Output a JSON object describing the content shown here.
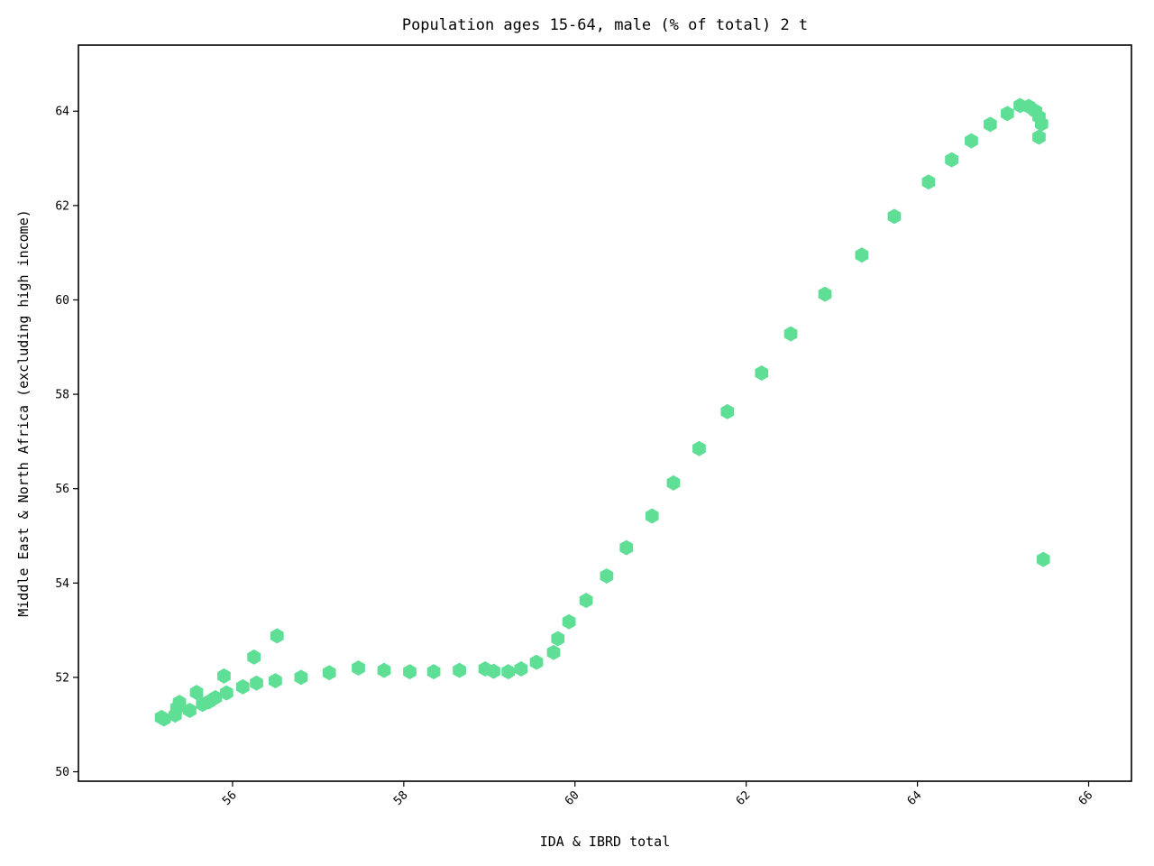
{
  "chart_data": {
    "type": "scatter",
    "title": "Population ages 15-64, male (% of total) 2 t",
    "xlabel": "IDA & IBRD total",
    "ylabel": "Middle East & North Africa (excluding high income)",
    "xlim": [
      54.2,
      66.5
    ],
    "ylim": [
      49.8,
      65.4
    ],
    "xticks": [
      56,
      58,
      60,
      62,
      64,
      66
    ],
    "yticks": [
      50,
      52,
      54,
      56,
      58,
      60,
      62,
      64
    ],
    "marker": "hexagon",
    "color": "#5fdf95",
    "grid": false,
    "points": [
      [
        55.17,
        51.15
      ],
      [
        55.2,
        51.12
      ],
      [
        55.33,
        51.2
      ],
      [
        55.35,
        51.35
      ],
      [
        55.38,
        51.47
      ],
      [
        55.5,
        51.3
      ],
      [
        55.58,
        51.68
      ],
      [
        55.65,
        51.43
      ],
      [
        55.72,
        51.48
      ],
      [
        55.8,
        51.57
      ],
      [
        55.9,
        52.03
      ],
      [
        55.93,
        51.67
      ],
      [
        56.12,
        51.8
      ],
      [
        56.25,
        52.43
      ],
      [
        56.28,
        51.88
      ],
      [
        56.5,
        51.93
      ],
      [
        56.52,
        52.88
      ],
      [
        56.8,
        52.0
      ],
      [
        57.13,
        52.1
      ],
      [
        57.47,
        52.2
      ],
      [
        57.77,
        52.15
      ],
      [
        58.07,
        52.12
      ],
      [
        58.35,
        52.12
      ],
      [
        58.65,
        52.15
      ],
      [
        58.95,
        52.18
      ],
      [
        59.05,
        52.13
      ],
      [
        59.22,
        52.12
      ],
      [
        59.37,
        52.18
      ],
      [
        59.55,
        52.32
      ],
      [
        59.75,
        52.53
      ],
      [
        59.8,
        52.82
      ],
      [
        59.93,
        53.18
      ],
      [
        60.13,
        53.63
      ],
      [
        60.37,
        54.15
      ],
      [
        60.6,
        54.75
      ],
      [
        60.9,
        55.42
      ],
      [
        61.15,
        56.12
      ],
      [
        61.45,
        56.85
      ],
      [
        61.78,
        57.63
      ],
      [
        62.18,
        58.45
      ],
      [
        62.52,
        59.28
      ],
      [
        62.92,
        60.12
      ],
      [
        63.35,
        60.95
      ],
      [
        63.73,
        61.77
      ],
      [
        64.13,
        62.5
      ],
      [
        64.4,
        62.97
      ],
      [
        64.63,
        63.37
      ],
      [
        64.85,
        63.72
      ],
      [
        65.05,
        63.95
      ],
      [
        65.2,
        64.12
      ],
      [
        65.3,
        64.1
      ],
      [
        65.38,
        64.0
      ],
      [
        65.42,
        63.88
      ],
      [
        65.45,
        63.73
      ],
      [
        65.42,
        63.45
      ],
      [
        65.47,
        54.5
      ]
    ]
  }
}
